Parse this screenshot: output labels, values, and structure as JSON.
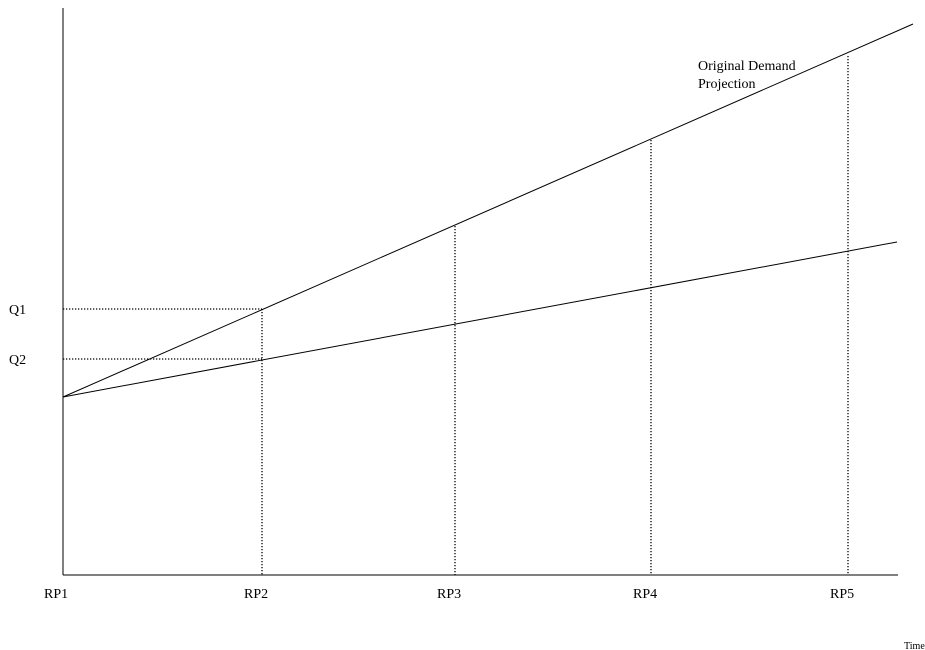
{
  "diagram": {
    "x_labels": [
      "RP1",
      "RP2",
      "RP3",
      "RP4",
      "RP5"
    ],
    "y_labels": [
      "Q1",
      "Q2"
    ],
    "x_axis_title": "Time",
    "annotation": [
      "Original Demand",
      "Projection"
    ],
    "lines": [
      {
        "name": "original-demand-projection-line"
      },
      {
        "name": "revised-demand-line"
      }
    ]
  }
}
